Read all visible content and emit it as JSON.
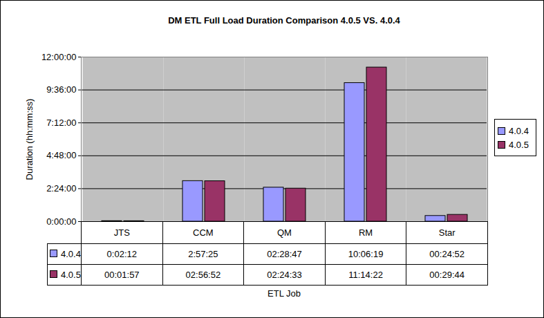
{
  "chart_data": {
    "type": "bar",
    "title": "DM ETL Full Load Duration Comparison 4.0.5 VS. 4.0.4",
    "x_label": "ETL Job",
    "y_label": "Duration (hh:mm:ss)",
    "categories": [
      "JTS",
      "CCM",
      "QM",
      "RM",
      "Star"
    ],
    "series": [
      {
        "name": "4.0.4",
        "color": "#9999ff",
        "values": [
          132,
          10645,
          8927,
          36379,
          1492
        ],
        "value_labels": [
          "0:02:12",
          "2:57:25",
          "02:28:47",
          "10:06:19",
          "00:24:52"
        ]
      },
      {
        "name": "4.0.5",
        "color": "#993366",
        "values": [
          117,
          10612,
          8673,
          40462,
          1784
        ],
        "value_labels": [
          "00:01:57",
          "02:56:52",
          "02:24:33",
          "11:14:22",
          "00:29:44"
        ]
      }
    ],
    "ylim": [
      0,
      43200
    ],
    "yticks": [
      {
        "value": 0,
        "label": "0:00:00"
      },
      {
        "value": 8640,
        "label": "2:24:00"
      },
      {
        "value": 17280,
        "label": "4:48:00"
      },
      {
        "value": 25920,
        "label": "7:12:00"
      },
      {
        "value": 34560,
        "label": "9:36:00"
      },
      {
        "value": 43200,
        "label": "12:00:00"
      }
    ],
    "grid": true,
    "legend": "right"
  }
}
